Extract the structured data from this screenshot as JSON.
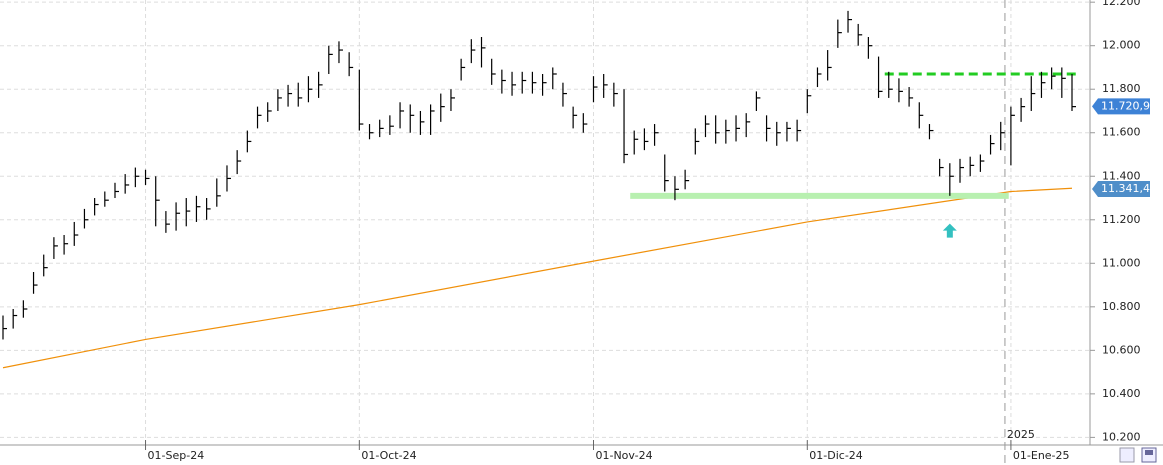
{
  "chart_data": {
    "type": "hlc_bar",
    "bar_color": "#000000",
    "categories": [
      null,
      null,
      null,
      null,
      null,
      null,
      null,
      null,
      null,
      null,
      null,
      null,
      null,
      null,
      "01-Sep-24",
      null,
      null,
      null,
      null,
      null,
      null,
      null,
      null,
      null,
      null,
      null,
      null,
      null,
      null,
      null,
      null,
      null,
      null,
      null,
      null,
      "01-Oct-24",
      null,
      null,
      null,
      null,
      null,
      null,
      null,
      null,
      null,
      null,
      null,
      null,
      null,
      null,
      null,
      null,
      null,
      null,
      null,
      null,
      null,
      null,
      "01-Nov-24",
      null,
      null,
      null,
      null,
      null,
      null,
      null,
      null,
      null,
      null,
      null,
      null,
      null,
      null,
      null,
      null,
      null,
      null,
      null,
      null,
      "01-Dic-24",
      null,
      null,
      null,
      null,
      null,
      null,
      null,
      null,
      null,
      null,
      null,
      null,
      null,
      null,
      null,
      null,
      null,
      null,
      null,
      "01-Ene-25",
      null,
      null,
      null,
      null,
      null,
      null
    ],
    "high": [
      10760,
      10790,
      10830,
      10960,
      11040,
      11120,
      11130,
      11190,
      11250,
      11300,
      11330,
      11370,
      11410,
      11440,
      11430,
      11400,
      11240,
      11280,
      11300,
      11310,
      11300,
      11390,
      11450,
      11520,
      11610,
      11720,
      11740,
      11800,
      11820,
      11830,
      11860,
      11880,
      12000,
      12020,
      11970,
      11890,
      11640,
      11660,
      11680,
      11740,
      11730,
      11700,
      11730,
      11780,
      11800,
      11940,
      12030,
      12040,
      11940,
      11890,
      11880,
      11880,
      11880,
      11870,
      11900,
      11830,
      11720,
      11690,
      11860,
      11870,
      11830,
      11800,
      11610,
      11620,
      11640,
      11500,
      11400,
      11430,
      11620,
      11680,
      11680,
      11660,
      11680,
      11690,
      11790,
      11680,
      11650,
      11650,
      11660,
      11800,
      11900,
      11980,
      12120,
      12160,
      12100,
      12040,
      11950,
      11880,
      11850,
      11810,
      11740,
      11640,
      11480,
      11460,
      11480,
      11490,
      11500,
      11590,
      11650,
      11720,
      11760,
      11860,
      11880,
      11900,
      11900,
      11870
    ],
    "low": [
      10650,
      10700,
      10750,
      10860,
      10940,
      11020,
      11040,
      11080,
      11160,
      11220,
      11260,
      11300,
      11320,
      11350,
      11360,
      11170,
      11140,
      11150,
      11170,
      11190,
      11200,
      11260,
      11330,
      11410,
      11510,
      11620,
      11650,
      11700,
      11720,
      11720,
      11740,
      11760,
      11870,
      11920,
      11860,
      11610,
      11570,
      11580,
      11590,
      11620,
      11600,
      11590,
      11590,
      11650,
      11700,
      11840,
      11920,
      11900,
      11820,
      11780,
      11770,
      11780,
      11780,
      11770,
      11800,
      11720,
      11620,
      11600,
      11740,
      11760,
      11720,
      11460,
      11500,
      11520,
      11540,
      11330,
      11290,
      11340,
      11500,
      11580,
      11550,
      11550,
      11560,
      11580,
      11700,
      11560,
      11540,
      11560,
      11560,
      11690,
      11810,
      11840,
      11990,
      12060,
      12000,
      11940,
      11760,
      11760,
      11740,
      11720,
      11620,
      11570,
      11400,
      11310,
      11370,
      11400,
      11420,
      11500,
      11520,
      11450,
      11650,
      11700,
      11760,
      11800,
      11760,
      11700
    ],
    "close": [
      10700,
      10760,
      10790,
      10900,
      10980,
      11080,
      11090,
      11130,
      11200,
      11270,
      11290,
      11330,
      11360,
      11400,
      11390,
      11290,
      11180,
      11230,
      11240,
      11260,
      11250,
      11310,
      11390,
      11470,
      11560,
      11680,
      11700,
      11760,
      11780,
      11760,
      11800,
      11820,
      11960,
      11980,
      11900,
      11640,
      11600,
      11620,
      11630,
      11700,
      11680,
      11650,
      11700,
      11720,
      11760,
      11900,
      11980,
      11990,
      11870,
      11840,
      11820,
      11840,
      11830,
      11830,
      11870,
      11780,
      11680,
      11640,
      11810,
      11820,
      11780,
      11500,
      11570,
      11560,
      11600,
      11380,
      11340,
      11380,
      11560,
      11640,
      11600,
      11610,
      11620,
      11650,
      11760,
      11620,
      11600,
      11620,
      11610,
      11770,
      11870,
      11900,
      12060,
      12120,
      12050,
      12000,
      11790,
      11800,
      11790,
      11760,
      11680,
      11610,
      11440,
      11400,
      11440,
      11450,
      11470,
      11550,
      11600,
      11680,
      11720,
      11780,
      11830,
      11860,
      11850,
      11720
    ],
    "moving_average": {
      "color": "#f0900a",
      "index": [
        0,
        14,
        35,
        58,
        79,
        99,
        105
      ],
      "values": [
        10520,
        10650,
        10810,
        11010,
        11190,
        11330,
        11345
      ]
    },
    "levels": [
      {
        "value": 11870,
        "from": 87,
        "to": 105,
        "color": "#22cc22",
        "style": "dashed"
      },
      {
        "value": 11310,
        "from": 62,
        "to": 98,
        "color": "#b8f0b0",
        "style": "solid"
      }
    ],
    "arrow": {
      "index": 93,
      "value": 11150,
      "color": "#33c0c0"
    },
    "year_marker": {
      "index": 99,
      "label": "2025"
    },
    "price_markers": [
      {
        "value": 11720.9,
        "label": "11.720,9",
        "color": "#3d82d6"
      },
      {
        "value": 11341.4,
        "label": "11.341,4",
        "color": "#4f8ec9"
      }
    ],
    "ylim": [
      10165,
      12210
    ],
    "yticks": [
      {
        "value": 10200,
        "label": "10.200"
      },
      {
        "value": 10400,
        "label": "10.400"
      },
      {
        "value": 10600,
        "label": "10.600"
      },
      {
        "value": 10800,
        "label": "10.800"
      },
      {
        "value": 11000,
        "label": "11.000"
      },
      {
        "value": 11200,
        "label": "11.200"
      },
      {
        "value": 11400,
        "label": "11.400"
      },
      {
        "value": 11600,
        "label": "11.600"
      },
      {
        "value": 11800,
        "label": "11.800"
      },
      {
        "value": 12000,
        "label": "12.000"
      },
      {
        "value": 12200,
        "label": "12.200"
      }
    ],
    "grid": true
  }
}
